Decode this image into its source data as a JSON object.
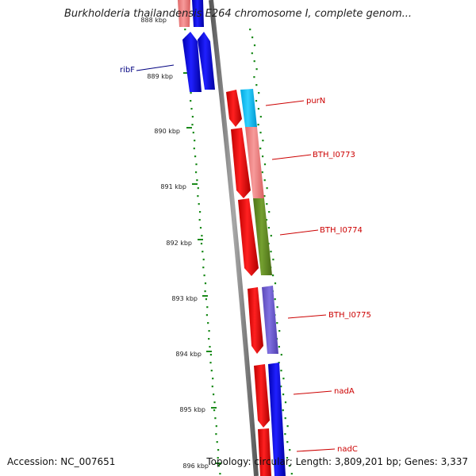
{
  "header": {
    "title": "Burkholderia thailandensis E264 chromosome I, complete genom..."
  },
  "footer": {
    "accession": "Accession: NC_007651",
    "topology": "Topology: circular; Length: 3,809,201 bp; Genes: 3,337"
  },
  "colors": {
    "cds_forward": "#ff0000",
    "cds_reverse": "#0000ff",
    "backbone": "#808080",
    "gc_skew_dots": "#1a8a1a",
    "label_red": "#cc0000",
    "label_blue": "#000080"
  },
  "scale": {
    "ticks": [
      "888 kbp",
      "889 kbp",
      "890 kbp",
      "891 kbp",
      "892 kbp",
      "893 kbp",
      "894 kbp",
      "895 kbp",
      "896 kbp"
    ]
  },
  "genes": [
    {
      "name": "ribF",
      "strand": "reverse"
    },
    {
      "name": "purN",
      "strand": "forward"
    },
    {
      "name": "BTH_I0773",
      "strand": "forward"
    },
    {
      "name": "BTH_I0774",
      "strand": "forward"
    },
    {
      "name": "BTH_I0775",
      "strand": "forward"
    },
    {
      "name": "nadA",
      "strand": "forward"
    },
    {
      "name": "nadC",
      "strand": "forward"
    }
  ]
}
